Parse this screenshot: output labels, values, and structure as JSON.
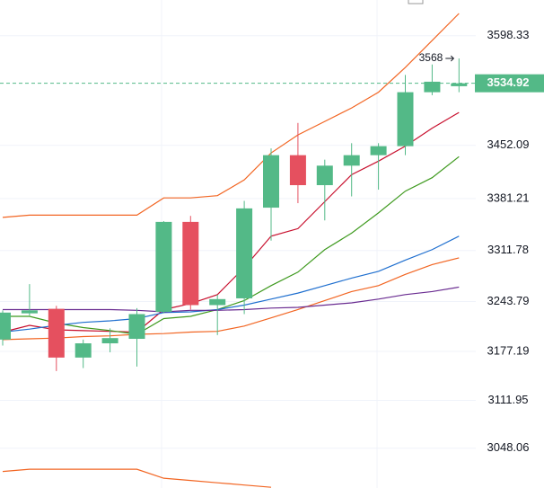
{
  "chart_data": {
    "type": "candlestick",
    "ylim": [
      2995,
      3646
    ],
    "yticks": [
      3598.33,
      3452.09,
      3381.21,
      3311.78,
      3243.79,
      3177.19,
      3111.95,
      3048.06
    ],
    "grid": true,
    "up_color": "#53b987",
    "down_color": "#e5505f",
    "open": [
      3193,
      3228,
      3234,
      3169,
      3188,
      3194,
      3230,
      3350,
      3239,
      3248,
      3369,
      3439,
      3399,
      3425,
      3439,
      3451,
      3523,
      3531
    ],
    "high": [
      3232,
      3267,
      3238,
      3193,
      3208,
      3235,
      3351,
      3358,
      3253,
      3378,
      3448,
      3482,
      3433,
      3455,
      3455,
      3546,
      3560,
      3568
    ],
    "low": [
      3185,
      3225,
      3151,
      3155,
      3176,
      3157,
      3228,
      3233,
      3199,
      3227,
      3325,
      3375,
      3352,
      3384,
      3393,
      3439,
      3519,
      3523
    ],
    "close": [
      3229,
      3232,
      3169,
      3188,
      3195,
      3227,
      3350,
      3239,
      3247,
      3368,
      3439,
      3399,
      3425,
      3439,
      3451,
      3523,
      3537,
      3534.92
    ],
    "series": [
      {
        "color": "#f26522",
        "values": [
          3356,
          3359,
          3359,
          3359,
          3359,
          3359,
          3382,
          3382,
          3385,
          3406,
          3442,
          3466,
          3484,
          3502,
          3523,
          3556,
          3592,
          3628
        ]
      },
      {
        "color": "#f26522",
        "values": [
          3193,
          3194,
          3195,
          3197,
          3198,
          3200,
          3201,
          3203,
          3204,
          3211,
          3222,
          3233,
          3245,
          3257,
          3265,
          3280,
          3293,
          3302
        ]
      },
      {
        "color": "#f26522",
        "values": [
          3017,
          3020,
          3020,
          3020,
          3020,
          3020,
          3008,
          3005,
          3002,
          2999,
          2996,
          null,
          null,
          null,
          null,
          null,
          null,
          null
        ]
      },
      {
        "color": "#c8102e",
        "values": [
          3203,
          3212,
          3206,
          3205,
          3204,
          3203,
          3233,
          3241,
          3253,
          3289,
          3331,
          3341,
          3377,
          3413,
          3431,
          3451,
          3475,
          3496
        ]
      },
      {
        "color": "#3f9a1f",
        "values": [
          3224,
          3224,
          3215,
          3209,
          3205,
          3200,
          3221,
          3224,
          3233,
          3245,
          3265,
          3283,
          3313,
          3335,
          3362,
          3391,
          3409,
          3437
        ]
      },
      {
        "color": "#1f6fcf",
        "values": [
          3203,
          3207,
          3212,
          3216,
          3218,
          3221,
          3229,
          3230,
          3233,
          3239,
          3247,
          3255,
          3265,
          3275,
          3284,
          3299,
          3313,
          3331
        ]
      },
      {
        "color": "#6a2c91",
        "values": [
          3233,
          3233,
          3233,
          3233,
          3233,
          3232,
          3230,
          3232,
          3232,
          3233,
          3235,
          3236,
          3239,
          3242,
          3247,
          3253,
          3257,
          3263
        ]
      }
    ],
    "last_price": 3534.92,
    "high_marker": 3568
  }
}
